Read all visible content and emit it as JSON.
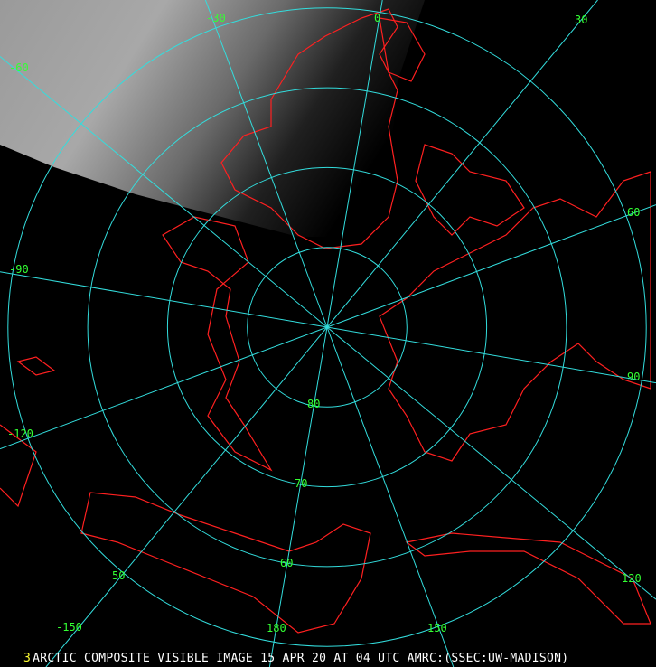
{
  "image": {
    "caption": "ARCTIC COMPOSITE VISIBLE IMAGE 15 APR 20 AT 04 UTC AMRC:(SSEC:UW-MADISON)",
    "frame_number": "3",
    "colors": {
      "background": "#000000",
      "graticule": "#33dddd",
      "coastline": "#ff2020",
      "labels": "#33ff33",
      "caption": "#ffffff",
      "frame_number": "#ffff33"
    },
    "projection": "polar stereographic, north pole centered"
  },
  "graticule": {
    "latitudes": [
      80,
      70,
      60,
      50
    ],
    "latitude_labels": [
      "80",
      "70",
      "60",
      "50"
    ],
    "longitudes": [
      0,
      30,
      60,
      90,
      120,
      150,
      180,
      -150,
      -120,
      -90,
      -60,
      -30
    ],
    "longitude_labels": [
      "0",
      "30",
      "60",
      "90",
      "120",
      "150",
      "180",
      "-150",
      "-120",
      "-90",
      "-60",
      "-30"
    ]
  }
}
